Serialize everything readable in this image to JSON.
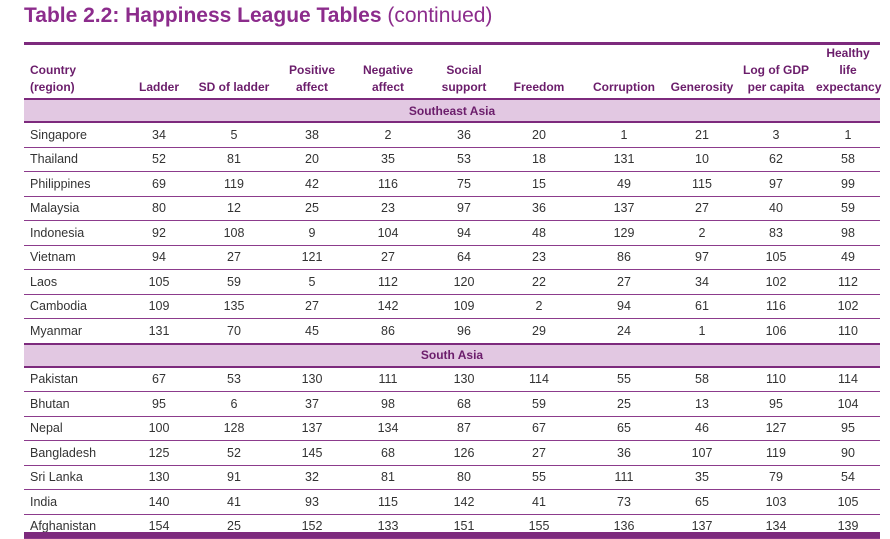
{
  "title": {
    "bold": "Table 2.2: Happiness League Tables",
    "rest": "(continued)"
  },
  "columns": [
    [
      "Country",
      "(region)"
    ],
    [
      "Ladder"
    ],
    [
      "SD of ladder"
    ],
    [
      "Positive",
      "affect"
    ],
    [
      "Negative",
      "affect"
    ],
    [
      "Social",
      "support"
    ],
    [
      "Freedom"
    ],
    [
      "Corruption"
    ],
    [
      "Generosity"
    ],
    [
      "Log of GDP",
      "per capita"
    ],
    [
      "Healthy life",
      "expectancy"
    ]
  ],
  "regions": [
    {
      "name": "Southeast Asia",
      "rows": [
        [
          "Singapore",
          "34",
          "5",
          "38",
          "2",
          "36",
          "20",
          "1",
          "21",
          "3",
          "1"
        ],
        [
          "Thailand",
          "52",
          "81",
          "20",
          "35",
          "53",
          "18",
          "131",
          "10",
          "62",
          "58"
        ],
        [
          "Philippines",
          "69",
          "119",
          "42",
          "116",
          "75",
          "15",
          "49",
          "115",
          "97",
          "99"
        ],
        [
          "Malaysia",
          "80",
          "12",
          "25",
          "23",
          "97",
          "36",
          "137",
          "27",
          "40",
          "59"
        ],
        [
          "Indonesia",
          "92",
          "108",
          "9",
          "104",
          "94",
          "48",
          "129",
          "2",
          "83",
          "98"
        ],
        [
          "Vietnam",
          "94",
          "27",
          "121",
          "27",
          "64",
          "23",
          "86",
          "97",
          "105",
          "49"
        ],
        [
          "Laos",
          "105",
          "59",
          "5",
          "112",
          "120",
          "22",
          "27",
          "34",
          "102",
          "112"
        ],
        [
          "Cambodia",
          "109",
          "135",
          "27",
          "142",
          "109",
          "2",
          "94",
          "61",
          "116",
          "102"
        ],
        [
          "Myanmar",
          "131",
          "70",
          "45",
          "86",
          "96",
          "29",
          "24",
          "1",
          "106",
          "110"
        ]
      ]
    },
    {
      "name": "South Asia",
      "rows": [
        [
          "Pakistan",
          "67",
          "53",
          "130",
          "111",
          "130",
          "114",
          "55",
          "58",
          "110",
          "114"
        ],
        [
          "Bhutan",
          "95",
          "6",
          "37",
          "98",
          "68",
          "59",
          "25",
          "13",
          "95",
          "104"
        ],
        [
          "Nepal",
          "100",
          "128",
          "137",
          "134",
          "87",
          "67",
          "65",
          "46",
          "127",
          "95"
        ],
        [
          "Bangladesh",
          "125",
          "52",
          "145",
          "68",
          "126",
          "27",
          "36",
          "107",
          "119",
          "90"
        ],
        [
          "Sri Lanka",
          "130",
          "91",
          "32",
          "81",
          "80",
          "55",
          "111",
          "35",
          "79",
          "54"
        ],
        [
          "India",
          "140",
          "41",
          "93",
          "115",
          "142",
          "41",
          "73",
          "65",
          "103",
          "105"
        ],
        [
          "Afghanistan",
          "154",
          "25",
          "152",
          "133",
          "151",
          "155",
          "136",
          "137",
          "134",
          "139"
        ]
      ]
    }
  ]
}
